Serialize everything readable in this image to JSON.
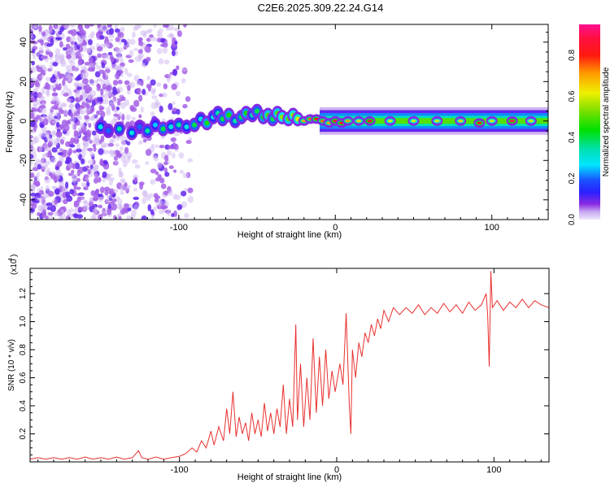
{
  "title": "C2E6.2025.309.22.24.G14",
  "chart_data": [
    {
      "type": "heatmap",
      "name": "spectrogram",
      "xlabel": "Height of straight line (km)",
      "ylabel": "Frequency (Hz)",
      "xlim": [
        -195,
        136
      ],
      "ylim": [
        -50,
        49
      ],
      "xticks": [
        "-100",
        "0",
        "100"
      ],
      "xtick_values": [
        -100,
        0,
        100
      ],
      "yticks": [
        "40",
        "20",
        "0",
        "-20",
        "-40"
      ],
      "ytick_values": [
        40,
        20,
        0,
        -20,
        -40
      ],
      "colorbar": {
        "label": "Normalized spectral amplitude",
        "range": [
          0,
          0.95
        ],
        "ticks": [
          "0.0",
          "0.2",
          "0.4",
          "0.6",
          "0.8"
        ],
        "tick_values": [
          0,
          0.2,
          0.4,
          0.6,
          0.8
        ]
      },
      "noise_region_km": [
        -195,
        -100
      ],
      "ridge": [
        [
          -150,
          -3,
          0.3
        ],
        [
          -145,
          -5,
          0.2
        ],
        [
          -138,
          -4,
          0.35
        ],
        [
          -130,
          -6,
          0.3
        ],
        [
          -125,
          -3,
          0.2
        ],
        [
          -120,
          -5,
          0.35
        ],
        [
          -115,
          -2,
          0.25
        ],
        [
          -110,
          -4,
          0.4
        ],
        [
          -105,
          -3,
          0.3
        ],
        [
          -100,
          -2,
          0.35
        ],
        [
          -95,
          -3,
          0.3
        ],
        [
          -90,
          -2,
          0.4
        ],
        [
          -86,
          1,
          0.3
        ],
        [
          -82,
          -1,
          0.45
        ],
        [
          -78,
          2,
          0.3
        ],
        [
          -75,
          4,
          0.35
        ],
        [
          -72,
          1,
          0.4
        ],
        [
          -68,
          3,
          0.45
        ],
        [
          -64,
          0,
          0.35
        ],
        [
          -60,
          2,
          0.4
        ],
        [
          -57,
          4,
          0.45
        ],
        [
          -53,
          3,
          0.35
        ],
        [
          -50,
          5,
          0.4
        ],
        [
          -46,
          2,
          0.45
        ],
        [
          -43,
          3,
          0.5
        ],
        [
          -40,
          1,
          0.4
        ],
        [
          -37,
          4,
          0.5
        ],
        [
          -34,
          2,
          0.55
        ],
        [
          -30,
          1,
          0.5
        ],
        [
          -27,
          3,
          0.55
        ],
        [
          -24,
          1,
          0.6
        ],
        [
          -20,
          0,
          0.7
        ],
        [
          -16,
          1,
          0.75
        ],
        [
          -12,
          1,
          0.8
        ],
        [
          -8,
          0,
          0.75
        ],
        [
          -4,
          -1,
          0.7
        ],
        [
          0,
          0,
          0.85
        ],
        [
          4,
          -1,
          0.8
        ],
        [
          8,
          0,
          0.7
        ],
        [
          15,
          0,
          0.65
        ],
        [
          22,
          0,
          0.85
        ],
        [
          35,
          0,
          0.6
        ],
        [
          50,
          0,
          0.6
        ],
        [
          65,
          0,
          0.6
        ],
        [
          80,
          0,
          0.65
        ],
        [
          92,
          -1,
          0.8
        ],
        [
          100,
          0,
          0.6
        ],
        [
          113,
          0,
          0.9
        ],
        [
          125,
          0,
          0.6
        ]
      ],
      "band": {
        "from_km": -10,
        "to_km": 136,
        "center_hz": 0,
        "amplitude": 0.5
      }
    },
    {
      "type": "line",
      "name": "snr",
      "xlabel": "Height of straight line (km)",
      "ylabel": "SNR (10 * v/v)",
      "scale_label": "(x10",
      "scale_exp": "4",
      "xlim": [
        -195,
        135
      ],
      "ylim": [
        0,
        1.38
      ],
      "xticks": [
        "-100",
        "0",
        "100"
      ],
      "xtick_values": [
        -100,
        0,
        100
      ],
      "yticks": [
        "0.2",
        "0.4",
        "0.6",
        "0.8",
        "1.0",
        "1.2"
      ],
      "ytick_values": [
        0.2,
        0.4,
        0.6,
        0.8,
        1.0,
        1.2
      ],
      "color": "#e8312f",
      "points": [
        [
          -195,
          0.02
        ],
        [
          -190,
          0.03
        ],
        [
          -185,
          0.02
        ],
        [
          -180,
          0.03
        ],
        [
          -175,
          0.02
        ],
        [
          -170,
          0.03
        ],
        [
          -165,
          0.02
        ],
        [
          -160,
          0.035
        ],
        [
          -155,
          0.02
        ],
        [
          -150,
          0.03
        ],
        [
          -145,
          0.02
        ],
        [
          -140,
          0.035
        ],
        [
          -135,
          0.02
        ],
        [
          -130,
          0.03
        ],
        [
          -126,
          0.08
        ],
        [
          -124,
          0.03
        ],
        [
          -120,
          0.02
        ],
        [
          -115,
          0.035
        ],
        [
          -110,
          0.02
        ],
        [
          -105,
          0.03
        ],
        [
          -100,
          0.04
        ],
        [
          -96,
          0.06
        ],
        [
          -92,
          0.1
        ],
        [
          -89,
          0.07
        ],
        [
          -86,
          0.15
        ],
        [
          -83,
          0.1
        ],
        [
          -80,
          0.22
        ],
        [
          -78,
          0.12
        ],
        [
          -75,
          0.25
        ],
        [
          -72,
          0.15
        ],
        [
          -70,
          0.38
        ],
        [
          -68,
          0.2
        ],
        [
          -66,
          0.5
        ],
        [
          -64,
          0.18
        ],
        [
          -62,
          0.32
        ],
        [
          -60,
          0.2
        ],
        [
          -58,
          0.28
        ],
        [
          -56,
          0.15
        ],
        [
          -54,
          0.35
        ],
        [
          -52,
          0.2
        ],
        [
          -50,
          0.3
        ],
        [
          -48,
          0.18
        ],
        [
          -46,
          0.42
        ],
        [
          -44,
          0.22
        ],
        [
          -42,
          0.35
        ],
        [
          -40,
          0.2
        ],
        [
          -38,
          0.38
        ],
        [
          -36,
          0.25
        ],
        [
          -34,
          0.55
        ],
        [
          -32,
          0.2
        ],
        [
          -30,
          0.45
        ],
        [
          -28,
          0.25
        ],
        [
          -26,
          0.98
        ],
        [
          -25,
          0.3
        ],
        [
          -23,
          0.7
        ],
        [
          -21,
          0.25
        ],
        [
          -19,
          0.6
        ],
        [
          -17,
          0.3
        ],
        [
          -15,
          0.88
        ],
        [
          -13,
          0.35
        ],
        [
          -11,
          0.75
        ],
        [
          -9,
          0.4
        ],
        [
          -7,
          0.8
        ],
        [
          -5,
          0.45
        ],
        [
          -3,
          0.65
        ],
        [
          -1,
          0.5
        ],
        [
          2,
          0.7
        ],
        [
          4,
          0.55
        ],
        [
          6,
          1.06
        ],
        [
          8,
          0.4
        ],
        [
          9,
          0.2
        ],
        [
          10,
          0.8
        ],
        [
          12,
          0.6
        ],
        [
          14,
          0.85
        ],
        [
          16,
          0.75
        ],
        [
          18,
          0.92
        ],
        [
          20,
          0.85
        ],
        [
          22,
          0.98
        ],
        [
          24,
          0.9
        ],
        [
          26,
          1.02
        ],
        [
          28,
          0.95
        ],
        [
          30,
          1.08
        ],
        [
          33,
          1.0
        ],
        [
          36,
          1.1
        ],
        [
          40,
          1.05
        ],
        [
          44,
          1.1
        ],
        [
          48,
          1.06
        ],
        [
          52,
          1.12
        ],
        [
          56,
          1.05
        ],
        [
          60,
          1.1
        ],
        [
          64,
          1.06
        ],
        [
          68,
          1.13
        ],
        [
          72,
          1.07
        ],
        [
          76,
          1.12
        ],
        [
          80,
          1.06
        ],
        [
          84,
          1.14
        ],
        [
          88,
          1.08
        ],
        [
          92,
          1.12
        ],
        [
          95,
          1.2
        ],
        [
          96,
          1.05
        ],
        [
          97,
          0.68
        ],
        [
          98,
          1.36
        ],
        [
          99,
          1.1
        ],
        [
          102,
          1.15
        ],
        [
          106,
          1.08
        ],
        [
          110,
          1.14
        ],
        [
          114,
          1.1
        ],
        [
          118,
          1.16
        ],
        [
          122,
          1.1
        ],
        [
          126,
          1.15
        ],
        [
          130,
          1.12
        ],
        [
          135,
          1.1
        ]
      ]
    }
  ]
}
